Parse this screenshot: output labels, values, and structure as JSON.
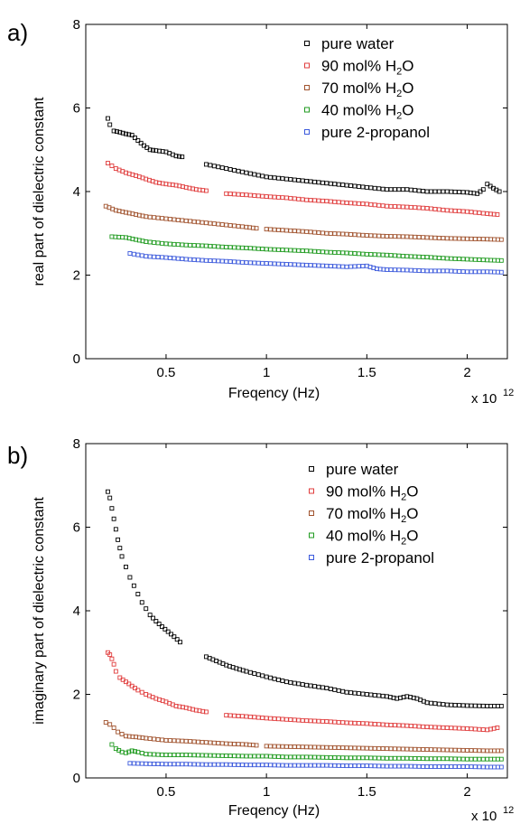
{
  "chart_data": [
    {
      "type": "scatter",
      "panel_label": "a)",
      "xlabel": "Freqency (Hz)",
      "ylabel": "real part of dielectric constant",
      "x_multiplier": "x 10",
      "x_multiplier_exp": "12",
      "xlim": [
        0.1,
        2.2
      ],
      "ylim": [
        0,
        8
      ],
      "xticks": [
        "0.5",
        "1",
        "1.5",
        "2"
      ],
      "xtick_values": [
        0.5,
        1.0,
        1.5,
        2.0
      ],
      "yticks": [
        "0",
        "2",
        "4",
        "6",
        "8"
      ],
      "ytick_values": [
        0,
        2,
        4,
        6,
        8
      ],
      "legend_position": "top-right",
      "series": [
        {
          "name": "pure water",
          "legend_main": "pure water",
          "legend_sub": "",
          "legend_tail": "",
          "color": "#000000",
          "segments": [
            {
              "x": [
                0.21,
                0.22,
                0.24,
                0.27,
                0.3,
                0.33,
                0.36,
                0.39,
                0.42,
                0.45,
                0.5,
                0.55,
                0.58
              ],
              "y": [
                5.75,
                5.6,
                5.45,
                5.42,
                5.38,
                5.35,
                5.22,
                5.1,
                5.0,
                4.98,
                4.95,
                4.85,
                4.83
              ]
            },
            {
              "x": [
                0.7,
                0.8,
                0.9,
                1.0,
                1.1,
                1.2,
                1.3,
                1.4,
                1.5,
                1.6,
                1.7,
                1.8,
                1.9,
                2.0,
                2.05,
                2.08,
                2.1,
                2.13,
                2.16
              ],
              "y": [
                4.65,
                4.55,
                4.45,
                4.35,
                4.3,
                4.25,
                4.2,
                4.15,
                4.1,
                4.05,
                4.05,
                4.0,
                4.0,
                3.98,
                3.95,
                4.05,
                4.18,
                4.08,
                4.0
              ]
            }
          ]
        },
        {
          "name": "90 mol% H2O",
          "legend_main": "90 mol% H",
          "legend_sub": "2",
          "legend_tail": "O",
          "color": "#e03c3c",
          "segments": [
            {
              "x": [
                0.21,
                0.25,
                0.3,
                0.35,
                0.4,
                0.45,
                0.5,
                0.55,
                0.6,
                0.65,
                0.7
              ],
              "y": [
                4.68,
                4.55,
                4.45,
                4.38,
                4.3,
                4.22,
                4.18,
                4.15,
                4.1,
                4.05,
                4.02
              ]
            },
            {
              "x": [
                0.8,
                0.9,
                1.0,
                1.1,
                1.2,
                1.3,
                1.4,
                1.5,
                1.6,
                1.7,
                1.8,
                1.9,
                2.0,
                2.1,
                2.15
              ],
              "y": [
                3.95,
                3.92,
                3.88,
                3.85,
                3.8,
                3.77,
                3.73,
                3.7,
                3.65,
                3.63,
                3.6,
                3.55,
                3.52,
                3.47,
                3.45
              ]
            }
          ]
        },
        {
          "name": "70 mol% H2O",
          "legend_main": "70 mol% H",
          "legend_sub": "2",
          "legend_tail": "O",
          "color": "#a0522d",
          "segments": [
            {
              "x": [
                0.2,
                0.25,
                0.3,
                0.35,
                0.4,
                0.5,
                0.6,
                0.7,
                0.8,
                0.9,
                0.95
              ],
              "y": [
                3.65,
                3.55,
                3.5,
                3.45,
                3.4,
                3.35,
                3.3,
                3.25,
                3.2,
                3.15,
                3.12
              ]
            },
            {
              "x": [
                1.0,
                1.1,
                1.2,
                1.3,
                1.4,
                1.5,
                1.6,
                1.7,
                1.8,
                1.9,
                2.0,
                2.1,
                2.17
              ],
              "y": [
                3.1,
                3.07,
                3.04,
                3.0,
                2.98,
                2.95,
                2.93,
                2.92,
                2.9,
                2.88,
                2.87,
                2.86,
                2.85
              ]
            }
          ]
        },
        {
          "name": "40 mol% H2O",
          "legend_main": "40 mol% H",
          "legend_sub": "2",
          "legend_tail": "O",
          "color": "#1e9a1e",
          "segments": [
            {
              "x": [
                0.23,
                0.3,
                0.35,
                0.4,
                0.5,
                0.6,
                0.7,
                0.8,
                0.9,
                1.0,
                1.1,
                1.2,
                1.3,
                1.4,
                1.5,
                1.6,
                1.7,
                1.8,
                1.9,
                2.0,
                2.1,
                2.17
              ],
              "y": [
                2.92,
                2.9,
                2.85,
                2.8,
                2.75,
                2.72,
                2.7,
                2.67,
                2.65,
                2.62,
                2.6,
                2.58,
                2.55,
                2.53,
                2.5,
                2.48,
                2.45,
                2.43,
                2.4,
                2.38,
                2.36,
                2.35
              ]
            }
          ]
        },
        {
          "name": "pure 2-propanol",
          "legend_main": "pure 2-propanol",
          "legend_sub": "",
          "legend_tail": "",
          "color": "#3c5adc",
          "segments": [
            {
              "x": [
                0.32,
                0.4,
                0.5,
                0.6,
                0.7,
                0.8,
                0.9,
                1.0,
                1.1,
                1.2,
                1.3,
                1.4,
                1.5,
                1.55,
                1.6,
                1.7,
                1.8,
                1.9,
                2.0,
                2.1,
                2.17
              ],
              "y": [
                2.52,
                2.45,
                2.42,
                2.38,
                2.35,
                2.33,
                2.3,
                2.28,
                2.26,
                2.24,
                2.22,
                2.2,
                2.22,
                2.15,
                2.13,
                2.12,
                2.1,
                2.1,
                2.08,
                2.08,
                2.07
              ]
            }
          ]
        }
      ]
    },
    {
      "type": "scatter",
      "panel_label": "b)",
      "xlabel": "Freqency (Hz)",
      "ylabel": "imaginary part of dielectric constant",
      "x_multiplier": "x 10",
      "x_multiplier_exp": "12",
      "xlim": [
        0.1,
        2.2
      ],
      "ylim": [
        0,
        8
      ],
      "xticks": [
        "0.5",
        "1",
        "1.5",
        "2"
      ],
      "xtick_values": [
        0.5,
        1.0,
        1.5,
        2.0
      ],
      "yticks": [
        "0",
        "2",
        "4",
        "6",
        "8"
      ],
      "ytick_values": [
        0,
        2,
        4,
        6,
        8
      ],
      "legend_position": "top-right",
      "series": [
        {
          "name": "pure water",
          "legend_main": "pure water",
          "legend_sub": "",
          "legend_tail": "",
          "color": "#000000",
          "segments": [
            {
              "x": [
                0.21,
                0.22,
                0.23,
                0.24,
                0.25,
                0.26,
                0.27,
                0.28,
                0.3,
                0.32,
                0.34,
                0.36,
                0.38,
                0.4,
                0.42,
                0.45,
                0.48,
                0.51,
                0.54,
                0.57
              ],
              "y": [
                6.85,
                6.7,
                6.45,
                6.2,
                5.95,
                5.7,
                5.5,
                5.3,
                5.05,
                4.8,
                4.6,
                4.4,
                4.2,
                4.05,
                3.9,
                3.75,
                3.62,
                3.5,
                3.38,
                3.25
              ]
            },
            {
              "x": [
                0.7,
                0.75,
                0.8,
                0.85,
                0.9,
                1.0,
                1.1,
                1.2,
                1.3,
                1.4,
                1.5,
                1.6,
                1.65,
                1.7,
                1.75,
                1.8,
                1.9,
                2.0,
                2.1,
                2.17
              ],
              "y": [
                2.9,
                2.8,
                2.7,
                2.62,
                2.55,
                2.42,
                2.3,
                2.22,
                2.15,
                2.05,
                2.0,
                1.95,
                1.9,
                1.95,
                1.9,
                1.8,
                1.75,
                1.73,
                1.72,
                1.72
              ]
            }
          ]
        },
        {
          "name": "90 mol% H2O",
          "legend_main": "90 mol% H",
          "legend_sub": "2",
          "legend_tail": "O",
          "color": "#e03c3c",
          "segments": [
            {
              "x": [
                0.21,
                0.22,
                0.23,
                0.24,
                0.25,
                0.27,
                0.3,
                0.33,
                0.36,
                0.4,
                0.45,
                0.5,
                0.55,
                0.6,
                0.65,
                0.7
              ],
              "y": [
                3.0,
                2.95,
                2.85,
                2.72,
                2.55,
                2.4,
                2.3,
                2.2,
                2.1,
                2.0,
                1.9,
                1.82,
                1.72,
                1.68,
                1.62,
                1.58
              ]
            },
            {
              "x": [
                0.8,
                0.9,
                1.0,
                1.1,
                1.2,
                1.3,
                1.4,
                1.5,
                1.6,
                1.7,
                1.8,
                1.9,
                2.0,
                2.1,
                2.15
              ],
              "y": [
                1.5,
                1.47,
                1.43,
                1.4,
                1.37,
                1.35,
                1.32,
                1.3,
                1.27,
                1.25,
                1.22,
                1.2,
                1.18,
                1.15,
                1.2
              ]
            }
          ]
        },
        {
          "name": "70 mol% H2O",
          "legend_main": "70 mol% H",
          "legend_sub": "2",
          "legend_tail": "O",
          "color": "#a0522d",
          "segments": [
            {
              "x": [
                0.2,
                0.22,
                0.24,
                0.26,
                0.28,
                0.3,
                0.35,
                0.4,
                0.5,
                0.6,
                0.7,
                0.8,
                0.9,
                0.95
              ],
              "y": [
                1.33,
                1.28,
                1.2,
                1.1,
                1.05,
                1.0,
                0.98,
                0.95,
                0.9,
                0.88,
                0.85,
                0.82,
                0.8,
                0.78
              ]
            },
            {
              "x": [
                1.0,
                1.1,
                1.2,
                1.3,
                1.4,
                1.5,
                1.6,
                1.7,
                1.8,
                1.9,
                2.0,
                2.1,
                2.17
              ],
              "y": [
                0.76,
                0.75,
                0.74,
                0.73,
                0.72,
                0.71,
                0.7,
                0.69,
                0.68,
                0.67,
                0.66,
                0.65,
                0.65
              ]
            }
          ]
        },
        {
          "name": "40 mol% H2O",
          "legend_main": "40 mol% H",
          "legend_sub": "2",
          "legend_tail": "O",
          "color": "#1e9a1e",
          "segments": [
            {
              "x": [
                0.23,
                0.25,
                0.28,
                0.3,
                0.33,
                0.36,
                0.4,
                0.5,
                0.6,
                0.7,
                0.8,
                0.9,
                1.0,
                1.1,
                1.2,
                1.3,
                1.4,
                1.5,
                1.6,
                1.7,
                1.8,
                1.9,
                2.0,
                2.1,
                2.17
              ],
              "y": [
                0.8,
                0.7,
                0.62,
                0.6,
                0.65,
                0.62,
                0.57,
                0.55,
                0.55,
                0.54,
                0.53,
                0.52,
                0.52,
                0.5,
                0.5,
                0.49,
                0.48,
                0.48,
                0.47,
                0.47,
                0.46,
                0.46,
                0.45,
                0.45,
                0.45
              ]
            }
          ]
        },
        {
          "name": "pure 2-propanol",
          "legend_main": "pure 2-propanol",
          "legend_sub": "",
          "legend_tail": "",
          "color": "#3c5adc",
          "segments": [
            {
              "x": [
                0.32,
                0.4,
                0.5,
                0.6,
                0.7,
                0.8,
                0.9,
                1.0,
                1.1,
                1.2,
                1.3,
                1.4,
                1.5,
                1.6,
                1.7,
                1.8,
                1.9,
                2.0,
                2.1,
                2.17
              ],
              "y": [
                0.35,
                0.34,
                0.33,
                0.33,
                0.32,
                0.32,
                0.31,
                0.31,
                0.3,
                0.3,
                0.3,
                0.29,
                0.29,
                0.28,
                0.28,
                0.27,
                0.27,
                0.27,
                0.26,
                0.26
              ]
            }
          ]
        }
      ]
    }
  ]
}
